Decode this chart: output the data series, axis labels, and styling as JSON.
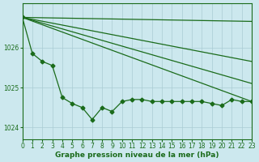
{
  "bg_color": "#cce8ee",
  "line_color": "#1a6b1a",
  "grid_color": "#aaccd4",
  "xlim": [
    0,
    23
  ],
  "ylim": [
    1023.7,
    1027.1
  ],
  "yticks": [
    1024,
    1025,
    1026
  ],
  "xticks": [
    0,
    1,
    2,
    3,
    4,
    5,
    6,
    7,
    8,
    9,
    10,
    11,
    12,
    13,
    14,
    15,
    16,
    17,
    18,
    19,
    20,
    21,
    22,
    23
  ],
  "xlabel": "Graphe pression niveau de la mer (hPa)",
  "main_line": [
    1026.75,
    1025.85,
    1025.65,
    1025.55,
    1024.75,
    1024.6,
    1024.5,
    1024.2,
    1024.5,
    1024.4,
    1024.65,
    1024.7,
    1024.7,
    1024.65,
    1024.65,
    1024.65,
    1024.65,
    1024.65,
    1024.65,
    1024.6,
    1024.55,
    1024.7,
    1024.65,
    1024.65
  ],
  "straight_lines": [
    {
      "x0": 0,
      "y0": 1026.75,
      "x1": 23,
      "y1": 1026.65
    },
    {
      "x0": 0,
      "y0": 1026.75,
      "x1": 23,
      "y1": 1025.65
    },
    {
      "x0": 0,
      "y0": 1026.75,
      "x1": 23,
      "y1": 1025.1
    },
    {
      "x0": 0,
      "y0": 1026.75,
      "x1": 23,
      "y1": 1024.65
    }
  ],
  "marker_size": 2.5,
  "linewidth": 0.9,
  "tick_fontsize": 5.5,
  "label_fontsize": 6.5
}
